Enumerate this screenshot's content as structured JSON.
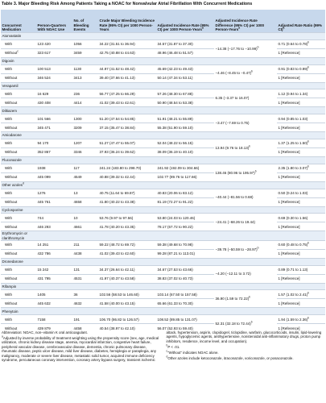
{
  "title": "Table 3. Major Bleeding Risk Among Patients Taking a NOAC for Nonvalvular Atrial Fibrillation With Concurrent Medications",
  "headers": [
    {
      "text": "Concurrent Medication"
    },
    {
      "text": "Person-Quarters With NOAC Use"
    },
    {
      "text": "No. of Bleeding Events"
    },
    {
      "text": "Crude Major Bleeding Incidence Rate (95% CI) per 1000 Person-Years"
    },
    {
      "text": "Adjusted Incidence Rate (95% CI) per 1000 Person-Years",
      "sup": "a"
    },
    {
      "text": "Adjusted Incidence Rate Difference (95% CI) per 1000 Person-Years",
      "sup": "a"
    },
    {
      "text": "Adjusted Rate Ratio (99% CI)",
      "sup": "a"
    }
  ],
  "groups": [
    {
      "name": "Atorvastatin",
      "diff": "−14.38 (−17.76 to −10.99)",
      "diff_sup": "b",
      "with": {
        "cells": [
          "With",
          "123 420",
          "1056",
          "34.22 (31.51 to 36.94)",
          "34.57 (31.87 to 37.30)",
          "0.71 (0.64 to 0.78)"
        ],
        "ratio_sup": "b"
      },
      "without": {
        "cells": [
          "Without",
          "323 617",
          "3459",
          "42.75 (40.88 to 44.63)",
          "48.96 (46.48 to 51.57)",
          "1 [Reference]"
        ],
        "label_sup": "c"
      }
    },
    {
      "name": "Digoxin",
      "diff": "−4.46 (−8.45 to −0.47)",
      "diff_sup": "b",
      "with": {
        "cells": [
          "With",
          "100 513",
          "1130",
          "44.97 (41.52 to 48.42)",
          "45.69 (42.23 to 49.43)",
          "0.91 (0.83 to 0.99)"
        ],
        "ratio_sup": "b"
      },
      "without": {
        "cells": [
          "Without",
          "346 524",
          "3413",
          "39.40 (37.66 to 41.13)",
          "50.14 (47.34 to 53.11)",
          "1 [Reference]"
        ]
      }
    },
    {
      "name": "Verapamil",
      "diff": "6.35 (−3.37 to 16.07)",
      "with": {
        "cells": [
          "With",
          "16 629",
          "236",
          "56.77 (47.25 to 66.29)",
          "57.26 (48.30 to 67.88)",
          "1.12 (0.94 to 1.34)"
        ]
      },
      "without": {
        "cells": [
          "Without",
          "430 408",
          "4414",
          "41.02 (39.43 to 42.61)",
          "50.90 (48.54 to 53.38)",
          "1 [Reference]"
        ]
      }
    },
    {
      "name": "Diltiazem",
      "diff": "−3.47 (−7.69 to 0.75)",
      "with": {
        "cells": [
          "With",
          "101 566",
          "1300",
          "51.20 (47.54 to 54.85)",
          "51.91 (48.21 to 55.89)",
          "0.94 (0.85 to 1.03)"
        ]
      },
      "without": {
        "cells": [
          "Without",
          "345 471",
          "3209",
          "37.15 (35.47 to 38.84)",
          "55.38 (51.90 to 59.10)",
          "1 [Reference]"
        ]
      }
    },
    {
      "name": "Amiodarone",
      "diff": "13.94 (9.76 to 18.13)",
      "diff_sup": "b",
      "with": {
        "cells": [
          "With",
          "94 170",
          "1207",
          "51.27 (47.47 to 55.07)",
          "52.04 (48.22 to 56.15)",
          "1.37 (1.25 to 1.50)"
        ],
        "ratio_sup": "b"
      },
      "without": {
        "cells": [
          "Without",
          "352 867",
          "3346",
          "37.93 (36.24 to 39.62)",
          "38.09 (36.19 to 40.10)",
          "1 [Reference]"
        ]
      }
    },
    {
      "name": "Fluconazole",
      "diff": "138.46 (80.96 to 195.97)",
      "diff_sup": "b",
      "with": {
        "cells": [
          "With",
          "1938",
          "117",
          "241.24 (183.80 to 298.70)",
          "241.92 (192.09 to 304.66)",
          "2.35 (1.80 to 3.07)"
        ],
        "ratio_sup": "b"
      },
      "without": {
        "cells": [
          "Without",
          "445 099",
          "4549",
          "40.88 (39.32 to 42.44)",
          "102.77 (89.76 to 117.66)",
          "1 [Reference]"
        ]
      }
    },
    {
      "name": "Other azoles",
      "name_sup": "d",
      "diff": "−40.44 (−81.56 to 0.68)",
      "with": {
        "cells": [
          "With",
          "1276",
          "13",
          "40.75 (11.64 to 69.87)",
          "40.83 (20.06 to 83.12)",
          "0.50 (0.24 to 1.03)"
        ]
      },
      "without": {
        "cells": [
          "Without",
          "445 761",
          "4658",
          "41.80 (40.22 to 43.38)",
          "81.19 (72.27 to 91.22)",
          "1 [Reference]"
        ]
      }
    },
    {
      "name": "Cyclosporine",
      "diff": "−24.41 (−68.26 to 19.44)",
      "with": {
        "cells": [
          "With",
          "744",
          "10",
          "53.76 (9.97 to 97.56)",
          "53.80 (24.03 to 120.46)",
          "0.69 (0.30 to 1.56)"
        ]
      },
      "without": {
        "cells": [
          "Without",
          "446 293",
          "4661",
          "41.78 (40.20 to 43.35)",
          "78.17 (67.72 to 90.22)",
          "1 [Reference]"
        ]
      }
    },
    {
      "name": "Erythromycin or clarithromycin",
      "diff": "−39.78 (−50.59 to −28.97)",
      "diff_sup": "b",
      "with": {
        "cells": [
          "With",
          "14 251",
          "211",
          "59.22 (48.72 to 69.72)",
          "59.38 (49.68 to 70.98)",
          "0.60 (0.48 to 0.75)"
        ],
        "ratio_sup": "b"
      },
      "without": {
        "cells": [
          "Without",
          "432 786",
          "4438",
          "41.02 (39.43 to 42.60)",
          "99.28 (87.21 to 113.01)",
          "1 [Reference]"
        ]
      }
    },
    {
      "name": "Dronedarone",
      "diff": "−4.20 (−12.11 to 3.72)",
      "with": {
        "cells": [
          "With",
          "15 242",
          "131",
          "34.37 (26.64 to 42.11)",
          "34.67 (27.53 to 43.66)",
          "0.89 (0.71 to 1.13)"
        ]
      },
      "without": {
        "cells": [
          "Without",
          "431 795",
          "4531",
          "41.97 (40.37 to 43.58)",
          "38.83 (37.02 to 40.73)",
          "1 [Reference]"
        ]
      }
    },
    {
      "name": "Rifampin",
      "diff": "36.90 (1.59 to 72.22)",
      "diff_sup": "b",
      "with": {
        "cells": [
          "With",
          "1405",
          "36",
          "102.56 (58.53 to 146.60)",
          "103.14 (67.50 to 157.58)",
          "1.57 (1.02 to 2.41)"
        ],
        "ratio_sup": "b"
      },
      "without": {
        "cells": [
          "Without",
          "445 632",
          "4632",
          "41.58 (40.00 to 43.15)",
          "65.66 (61.33 to 70.30)",
          "1 [Reference]"
        ]
      }
    },
    {
      "name": "Phenytoin",
      "diff": "52.31 (32.18 to 72.44)",
      "diff_sup": "b",
      "with": {
        "cells": [
          "With",
          "7158",
          "191",
          "106.70 (86.82 to 126.57)",
          "108.52 (89.85 to 131.07)",
          "1.94 (1.59 to 2.36)"
        ],
        "ratio_sup": "b"
      },
      "without": {
        "cells": [
          "Without",
          "439 879",
          "4458",
          "40.54 (38.97 to 42.10)",
          "56.07 (52.93 to 59.40)",
          "1 [Reference]"
        ]
      }
    }
  ],
  "footnotes": {
    "abbreviation": "Abbreviation: NOAC, non–vitamin K oral anticoagulant.",
    "notes": [
      {
        "mark": "a",
        "text": "Adjusted by inverse probability of treatment weighting using the propensity score (sex, age, medical utilization, chronic kidney disease stage, anemia, myocardial infarction, congestive heart failure, peripheral vascular disease, cerebrovascular disease, dementia, chronic pulmonary disease, rheumatic disease, peptic ulcer disease, mild liver disease, diabetes, hemiplegia or paraplegia, any malignancy, moderate or severe liver disease, metastatic solid tumor, acquired immune deficiency syndrome, percutaneous coronary intervention, coronary artery bypass surgery, transient ischemic attack, hypertension, aspirin, clopidogrel, ticlopidine, warfarin, glucocorticoids, insulin, lipid-lowering agents, hypoglycemic agents, antihypertensive, nonsteroidal anti-inflammatory drugs, proton pump inhibitors, residence, income level, and occupation)."
      },
      {
        "mark": "b",
        "text": "P < .01."
      },
      {
        "mark": "c",
        "text": "“Without” indicates NOAC alone."
      },
      {
        "mark": "d",
        "text": "Other azoles include ketoconazole, itraconazole, voriconazole, or posaconazole."
      }
    ]
  }
}
